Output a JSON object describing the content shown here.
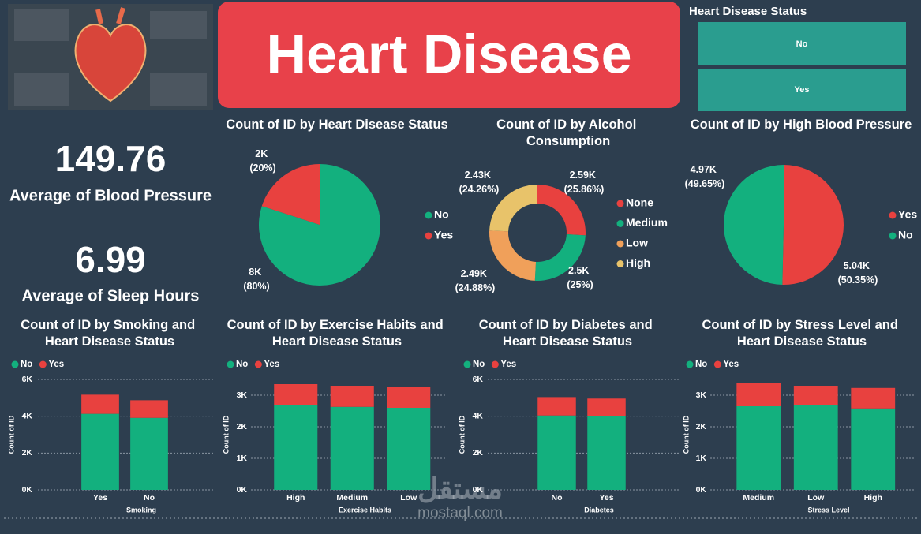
{
  "title": "Heart Disease",
  "slicer": {
    "title": "Heart Disease Status",
    "options": [
      "No",
      "Yes"
    ]
  },
  "cards": [
    {
      "value": 149.76,
      "label": "Average of Blood Pressure"
    },
    {
      "value": 6.99,
      "label": "Average of Sleep Hours"
    }
  ],
  "watermark": {
    "arabic": "مستقل",
    "latin": "mostaql.com"
  },
  "chart_data": [
    {
      "type": "pie",
      "title": "Count of ID by Heart Disease Status",
      "categories": [
        "No",
        "Yes"
      ],
      "values": [
        8000,
        2000
      ],
      "value_labels": [
        "8K (80%)",
        "2K (20%)"
      ],
      "colors": [
        "#13b07e",
        "#e8413f"
      ]
    },
    {
      "type": "donut",
      "title": "Count of ID by Alcohol Consumption",
      "categories": [
        "None",
        "Medium",
        "Low",
        "High"
      ],
      "values": [
        2590,
        2500,
        2490,
        2430
      ],
      "value_labels": [
        "2.59K (25.86%)",
        "2.5K (25%)",
        "2.49K (24.88%)",
        "2.43K (24.26%)"
      ],
      "colors": [
        "#e8413f",
        "#13b07e",
        "#f0a05a",
        "#e8c36a"
      ]
    },
    {
      "type": "pie",
      "title": "Count of ID by High Blood Pressure",
      "categories": [
        "Yes",
        "No"
      ],
      "values": [
        5040,
        4970
      ],
      "value_labels": [
        "5.04K (50.35%)",
        "4.97K (49.65%)"
      ],
      "colors": [
        "#e8413f",
        "#13b07e"
      ]
    },
    {
      "type": "stacked_bar",
      "title": "Count of ID by Smoking and Heart Disease Status",
      "categories": [
        "Yes",
        "No"
      ],
      "x_label": "Smoking",
      "y_label": "Count of ID",
      "series": [
        {
          "name": "No",
          "color": "#13b07e",
          "values": [
            4130,
            3910
          ]
        },
        {
          "name": "Yes",
          "color": "#e8413f",
          "values": [
            1040,
            960
          ]
        }
      ],
      "ylim": [
        0,
        6000
      ],
      "yticks": [
        {
          "value": 0,
          "label": "0K"
        },
        {
          "value": 2000,
          "label": "2K"
        },
        {
          "value": 4000,
          "label": "4K"
        },
        {
          "value": 6000,
          "label": "6K"
        }
      ],
      "grid": true
    },
    {
      "type": "stacked_bar",
      "title": "Count of ID by Exercise Habits and Heart Disease Status",
      "categories": [
        "High",
        "Medium",
        "Low"
      ],
      "x_label": "Exercise Habits",
      "y_label": "Count of ID",
      "series": [
        {
          "name": "No",
          "color": "#13b07e",
          "values": [
            2680,
            2630,
            2600
          ]
        },
        {
          "name": "Yes",
          "color": "#e8413f",
          "values": [
            670,
            670,
            650
          ]
        }
      ],
      "ylim": [
        0,
        3500
      ],
      "yticks": [
        {
          "value": 0,
          "label": "0K"
        },
        {
          "value": 1000,
          "label": "1K"
        },
        {
          "value": 2000,
          "label": "2K"
        },
        {
          "value": 3000,
          "label": "3K"
        }
      ],
      "grid": true
    },
    {
      "type": "stacked_bar",
      "title": "Count of ID by Diabetes and Heart Disease Status",
      "categories": [
        "No",
        "Yes"
      ],
      "x_label": "Diabetes",
      "y_label": "Count of ID",
      "series": [
        {
          "name": "No",
          "color": "#13b07e",
          "values": [
            4040,
            4000
          ]
        },
        {
          "name": "Yes",
          "color": "#e8413f",
          "values": [
            1000,
            960
          ]
        }
      ],
      "ylim": [
        0,
        6000
      ],
      "yticks": [
        {
          "value": 0,
          "label": "0K"
        },
        {
          "value": 2000,
          "label": "2K"
        },
        {
          "value": 4000,
          "label": "4K"
        },
        {
          "value": 6000,
          "label": "6K"
        }
      ],
      "grid": true
    },
    {
      "type": "stacked_bar",
      "title": "Count of ID by Stress Level and Heart Disease Status",
      "categories": [
        "Medium",
        "Low",
        "High"
      ],
      "x_label": "Stress Level",
      "y_label": "Count of ID",
      "series": [
        {
          "name": "No",
          "color": "#13b07e",
          "values": [
            2650,
            2680,
            2580
          ]
        },
        {
          "name": "Yes",
          "color": "#e8413f",
          "values": [
            730,
            600,
            650
          ]
        }
      ],
      "ylim": [
        0,
        3500
      ],
      "yticks": [
        {
          "value": 0,
          "label": "0K"
        },
        {
          "value": 1000,
          "label": "1K"
        },
        {
          "value": 2000,
          "label": "2K"
        },
        {
          "value": 3000,
          "label": "3K"
        }
      ],
      "grid": true
    }
  ]
}
